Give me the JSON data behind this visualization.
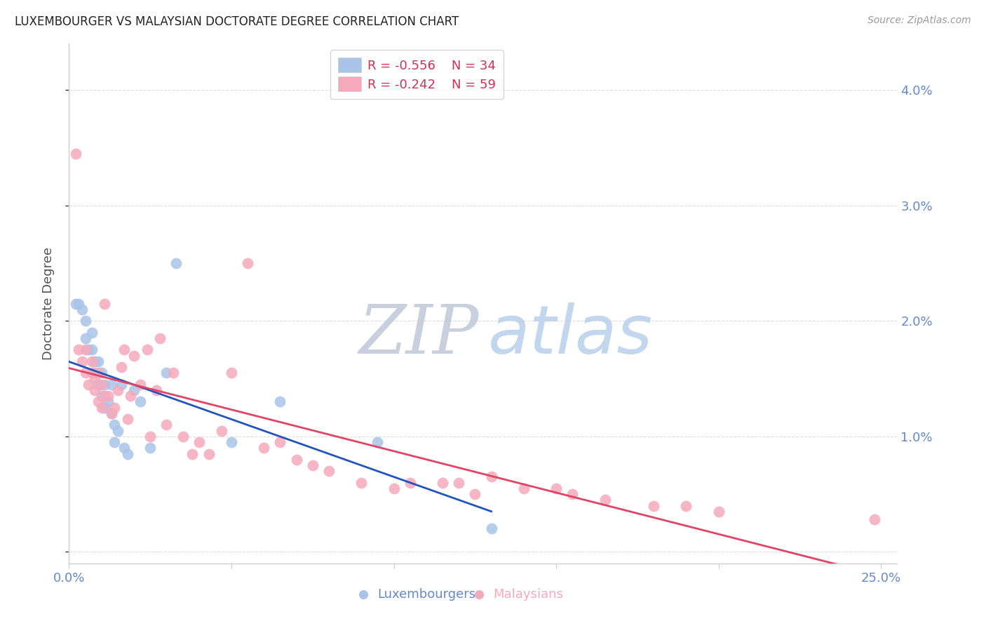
{
  "title": "LUXEMBOURGER VS MALAYSIAN DOCTORATE DEGREE CORRELATION CHART",
  "source": "Source: ZipAtlas.com",
  "ylabel": "Doctorate Degree",
  "xlim": [
    0.0,
    0.255
  ],
  "ylim": [
    -0.001,
    0.044
  ],
  "yticks": [
    0.0,
    0.01,
    0.02,
    0.03,
    0.04
  ],
  "ytick_labels": [
    "",
    "1.0%",
    "2.0%",
    "3.0%",
    "4.0%"
  ],
  "xticks": [
    0.0,
    0.05,
    0.1,
    0.15,
    0.2,
    0.25
  ],
  "xtick_labels_show": [
    "0.0%",
    "",
    "",
    "",
    "",
    "25.0%"
  ],
  "legend_R1": "R = -0.556",
  "legend_N1": "N = 34",
  "legend_R2": "R = -0.242",
  "legend_N2": "N = 59",
  "blue_color": "#aac4e8",
  "pink_color": "#f5aabb",
  "line_blue": "#2255bb",
  "line_pink": "#e04466",
  "title_color": "#222222",
  "source_color": "#999999",
  "axis_tick_color": "#6688cc",
  "ylabel_color": "#555555",
  "grid_color": "#dddddd",
  "blue_scatter_x": [
    0.002,
    0.003,
    0.004,
    0.005,
    0.005,
    0.006,
    0.007,
    0.007,
    0.008,
    0.008,
    0.009,
    0.009,
    0.01,
    0.01,
    0.011,
    0.011,
    0.012,
    0.013,
    0.013,
    0.014,
    0.014,
    0.015,
    0.016,
    0.017,
    0.018,
    0.02,
    0.022,
    0.025,
    0.03,
    0.033,
    0.05,
    0.065,
    0.095,
    0.13
  ],
  "blue_scatter_y": [
    0.0215,
    0.0215,
    0.021,
    0.02,
    0.0185,
    0.0175,
    0.0175,
    0.019,
    0.0165,
    0.0155,
    0.0165,
    0.0145,
    0.0155,
    0.0135,
    0.0145,
    0.0125,
    0.013,
    0.0145,
    0.012,
    0.011,
    0.0095,
    0.0105,
    0.0145,
    0.009,
    0.0085,
    0.014,
    0.013,
    0.009,
    0.0155,
    0.025,
    0.0095,
    0.013,
    0.0095,
    0.002
  ],
  "pink_scatter_x": [
    0.002,
    0.003,
    0.004,
    0.005,
    0.005,
    0.006,
    0.007,
    0.007,
    0.008,
    0.008,
    0.009,
    0.009,
    0.01,
    0.01,
    0.011,
    0.011,
    0.012,
    0.013,
    0.014,
    0.015,
    0.016,
    0.017,
    0.018,
    0.019,
    0.02,
    0.022,
    0.024,
    0.025,
    0.027,
    0.028,
    0.03,
    0.032,
    0.035,
    0.038,
    0.04,
    0.043,
    0.047,
    0.05,
    0.055,
    0.06,
    0.065,
    0.07,
    0.075,
    0.08,
    0.09,
    0.1,
    0.105,
    0.115,
    0.12,
    0.125,
    0.13,
    0.14,
    0.15,
    0.155,
    0.165,
    0.18,
    0.19,
    0.2,
    0.248
  ],
  "pink_scatter_y": [
    0.0345,
    0.0175,
    0.0165,
    0.0175,
    0.0155,
    0.0145,
    0.0155,
    0.0165,
    0.015,
    0.014,
    0.0155,
    0.013,
    0.0145,
    0.0125,
    0.0135,
    0.0215,
    0.0135,
    0.012,
    0.0125,
    0.014,
    0.016,
    0.0175,
    0.0115,
    0.0135,
    0.017,
    0.0145,
    0.0175,
    0.01,
    0.014,
    0.0185,
    0.011,
    0.0155,
    0.01,
    0.0085,
    0.0095,
    0.0085,
    0.0105,
    0.0155,
    0.025,
    0.009,
    0.0095,
    0.008,
    0.0075,
    0.007,
    0.006,
    0.0055,
    0.006,
    0.006,
    0.006,
    0.005,
    0.0065,
    0.0055,
    0.0055,
    0.005,
    0.0045,
    0.004,
    0.004,
    0.0035,
    0.0028
  ]
}
